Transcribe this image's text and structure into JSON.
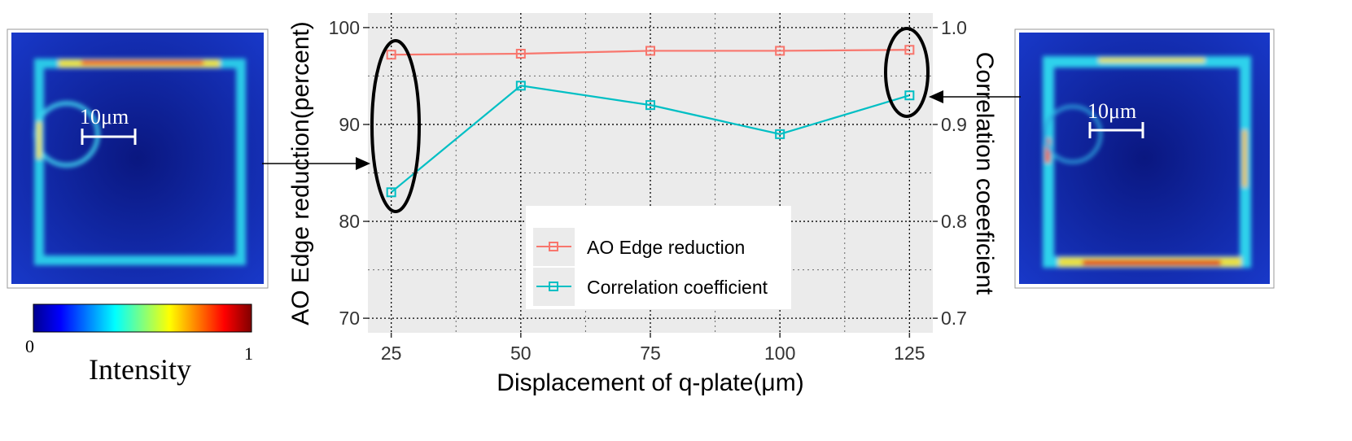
{
  "chart_data": {
    "type": "line",
    "title": "",
    "xlabel": "Displacement of q-plate(μm)",
    "ylabel": "AO Edge reduction(percent)",
    "y2label": "Correlation coeeficient",
    "x": [
      25,
      50,
      75,
      100,
      125
    ],
    "x_ticks": [
      "25",
      "50",
      "75",
      "100",
      "125"
    ],
    "y_ticks": [
      "70",
      "80",
      "90",
      "100"
    ],
    "y2_ticks": [
      "0.7",
      "0.8",
      "0.9",
      "1.0"
    ],
    "xlim": [
      20.5,
      129.5
    ],
    "ylim": [
      68.5,
      101.5
    ],
    "y2lim": [
      0.685,
      1.015
    ],
    "grid": true,
    "legend_position": "bottom-center",
    "series": [
      {
        "name": "AO Edge reduction",
        "axis": "left",
        "color": "#F8766D",
        "values": [
          97.2,
          97.3,
          97.6,
          97.6,
          97.7
        ]
      },
      {
        "name": "Correlation coefficient",
        "axis": "right",
        "color": "#00BFC4",
        "values": [
          0.83,
          0.94,
          0.92,
          0.89,
          0.93
        ]
      }
    ]
  },
  "insets": {
    "left_scale_label": "10μm",
    "right_scale_label": "10μm"
  },
  "colorbar": {
    "min_label": "0",
    "max_label": "1",
    "title": "Intensity"
  },
  "colors": {
    "panel_bg": "#EBEBEB",
    "grid": "#000000",
    "heatmap_bg": "#0A1E9C",
    "heatmap_ring": "#2DE0F0",
    "heatmap_hot": "#F04010"
  }
}
